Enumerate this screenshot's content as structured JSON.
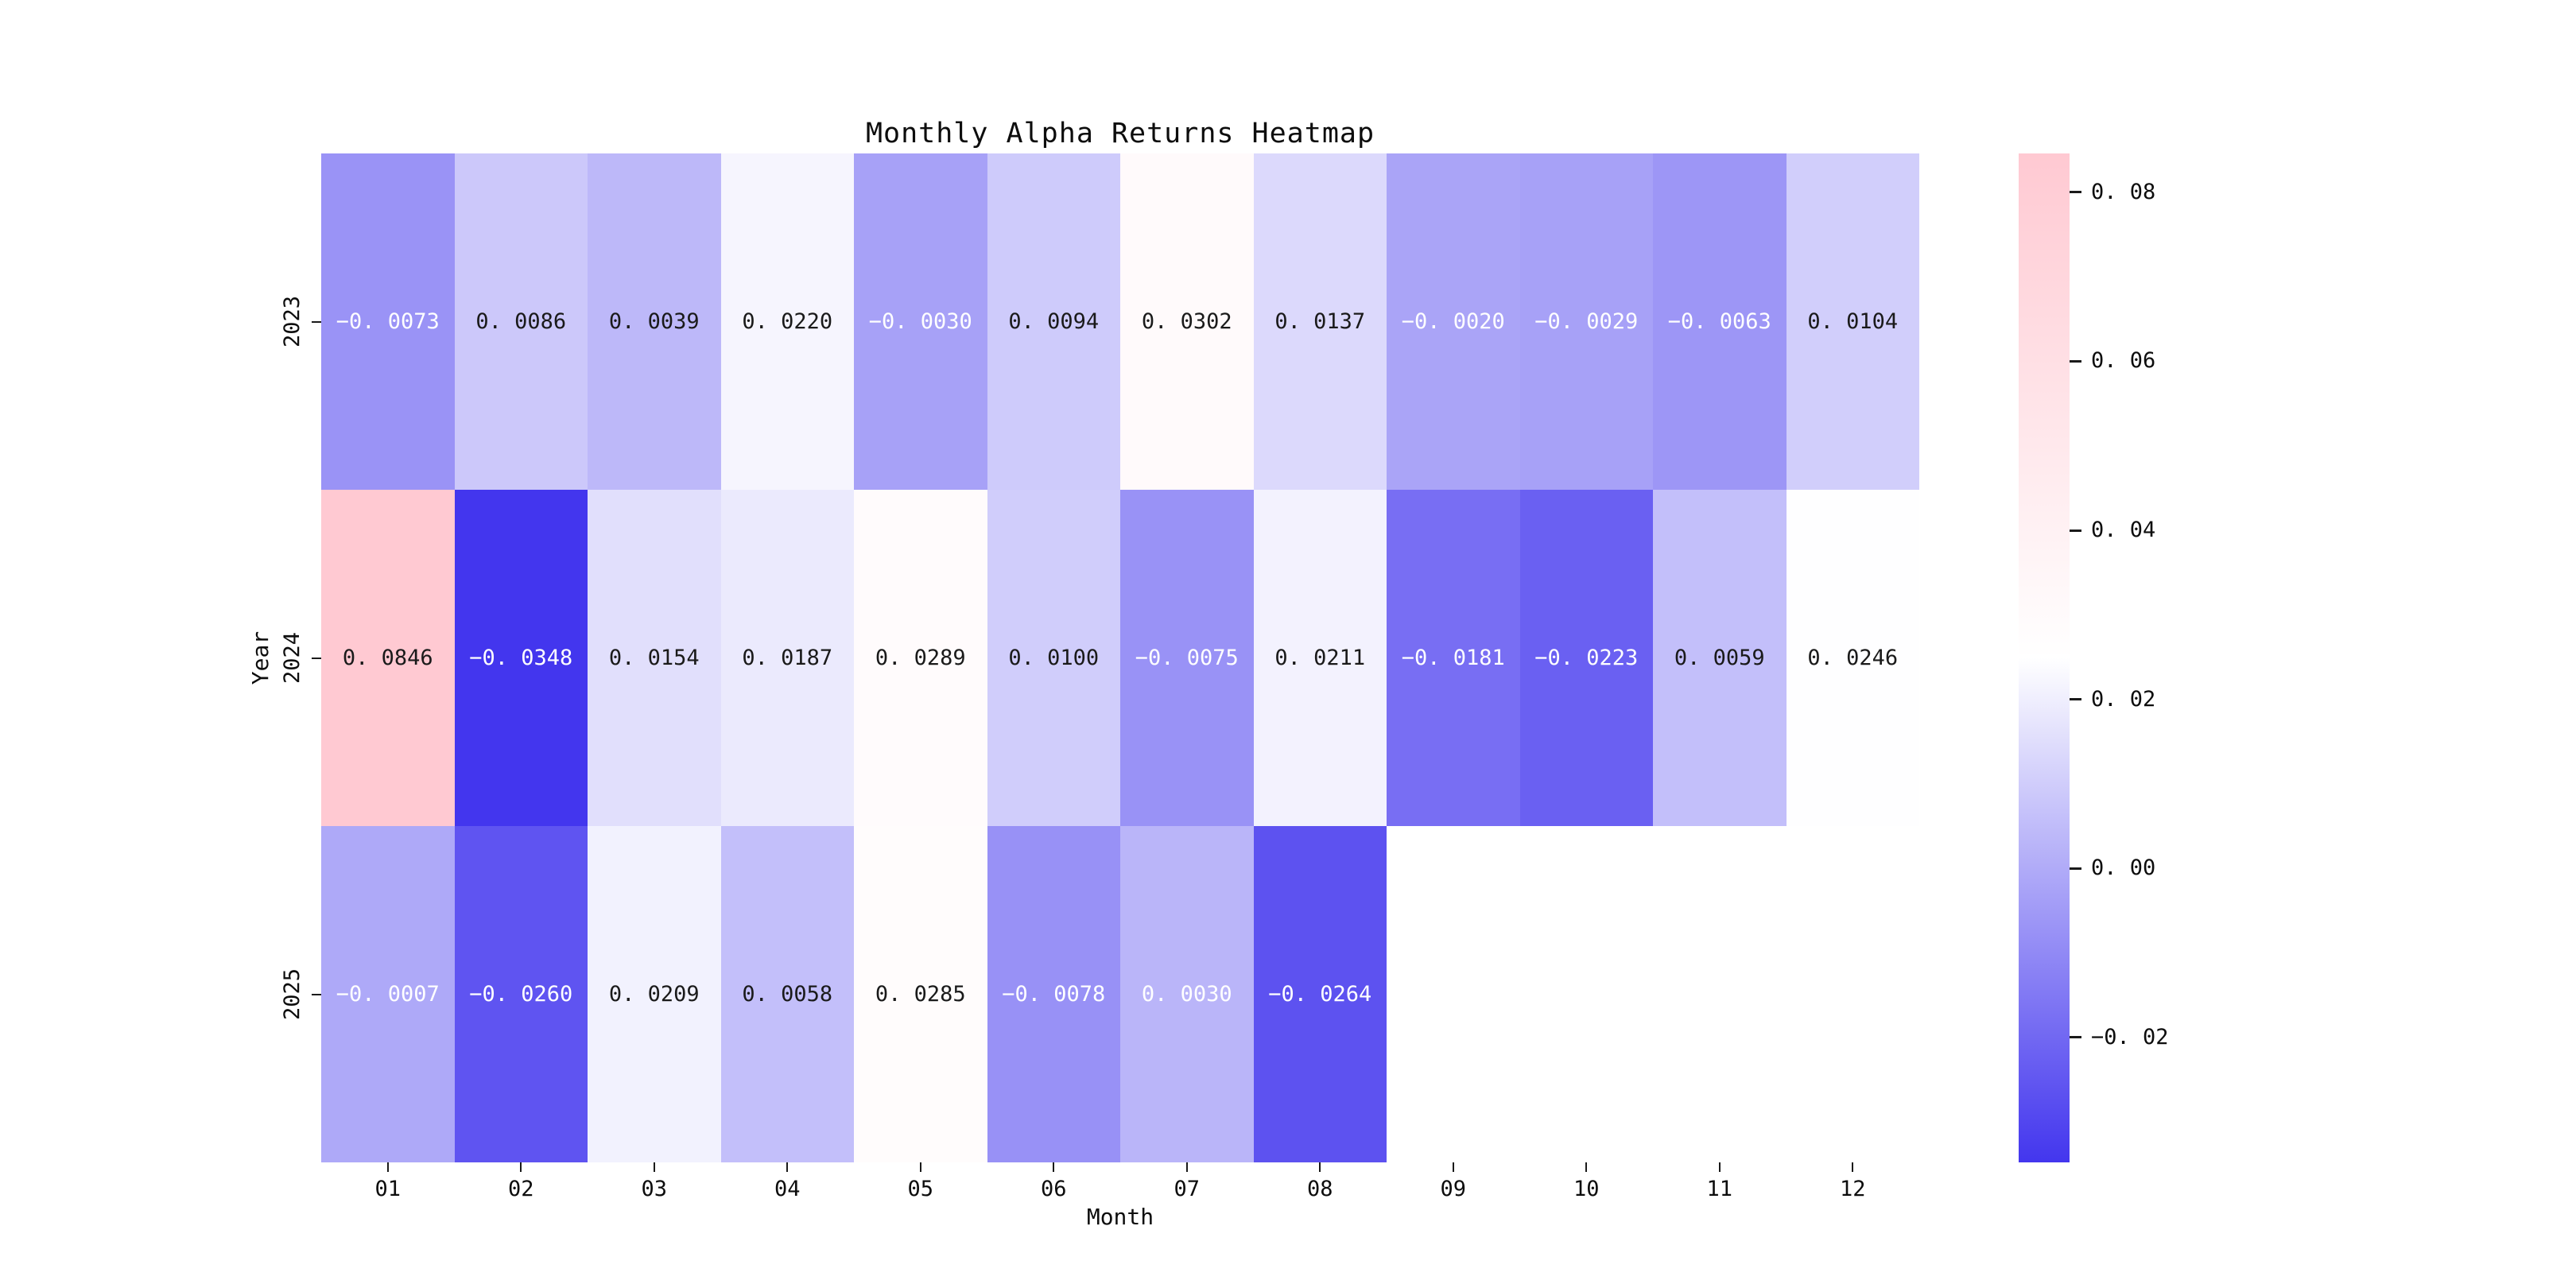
{
  "title": "Monthly Alpha Returns Heatmap",
  "xlabel": "Month",
  "ylabel": "Year",
  "chart_data": {
    "type": "heatmap",
    "x_categories": [
      "01",
      "02",
      "03",
      "04",
      "05",
      "06",
      "07",
      "08",
      "09",
      "10",
      "11",
      "12"
    ],
    "y_categories": [
      "2023",
      "2024",
      "2025"
    ],
    "values": [
      [
        -0.0073,
        0.0086,
        0.0039,
        0.022,
        -0.003,
        0.0094,
        0.0302,
        0.0137,
        -0.002,
        -0.0029,
        -0.0063,
        0.0104
      ],
      [
        0.0846,
        -0.0348,
        0.0154,
        0.0187,
        0.0289,
        0.01,
        -0.0075,
        0.0211,
        -0.0181,
        -0.0223,
        0.0059,
        0.0246
      ],
      [
        -0.0007,
        -0.026,
        0.0209,
        0.0058,
        0.0285,
        -0.0078,
        0.003,
        -0.0264,
        null,
        null,
        null,
        null
      ]
    ],
    "vmin": -0.0348,
    "vmax": 0.0846,
    "annotation_decimals": 4,
    "colorbar_ticks": [
      0.08,
      0.06,
      0.04,
      0.02,
      0.0,
      -0.02
    ],
    "colormap": {
      "low": "#4336EE",
      "mid": "#FFFFFF",
      "high": "#FFC9D2"
    },
    "legend_position": "right-colorbar",
    "grid": false
  }
}
